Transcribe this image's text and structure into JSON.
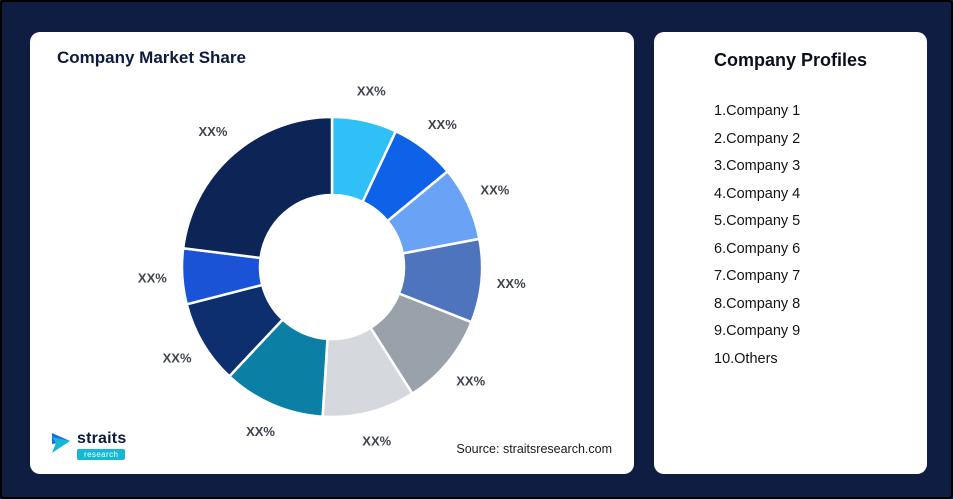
{
  "page": {
    "background": "#101d42"
  },
  "chart_card": {
    "title": "Company Market Share",
    "source": "Source: straitsresearch.com"
  },
  "logo": {
    "name": "straits",
    "subtitle": "research"
  },
  "profiles": {
    "title": "Company Profiles",
    "items": [
      "1.Company 1",
      "2.Company 2",
      "3.Company 3",
      "4.Company 4",
      "5.Company 5",
      "6.Company 6",
      "7.Company 7",
      "8.Company 8",
      "9.Company 9",
      "10.Others"
    ]
  },
  "chart_data": {
    "type": "pie",
    "subtype": "donut",
    "title": "Company Market Share",
    "categories": [
      "Company 1",
      "Company 2",
      "Company 3",
      "Company 4",
      "Company 5",
      "Company 6",
      "Company 7",
      "Company 8",
      "Company 9",
      "Others"
    ],
    "labels": [
      "XX%",
      "XX%",
      "XX%",
      "XX%",
      "XX%",
      "XX%",
      "XX%",
      "XX%",
      "XX%",
      "XX%"
    ],
    "values": [
      7,
      7,
      8,
      9,
      10,
      10,
      11,
      9,
      6,
      23
    ],
    "colors": [
      "#2ec0f6",
      "#0d62e8",
      "#6aa3f5",
      "#4d74bd",
      "#99a1ab",
      "#d5d9de",
      "#0c7fa5",
      "#0d2f6e",
      "#1a53d6",
      "#0d2457"
    ],
    "inner_radius_ratio": 0.48,
    "start_angle_deg": -90,
    "direction": "clockwise",
    "legend": "none",
    "source": "Source: straitsresearch.com"
  }
}
